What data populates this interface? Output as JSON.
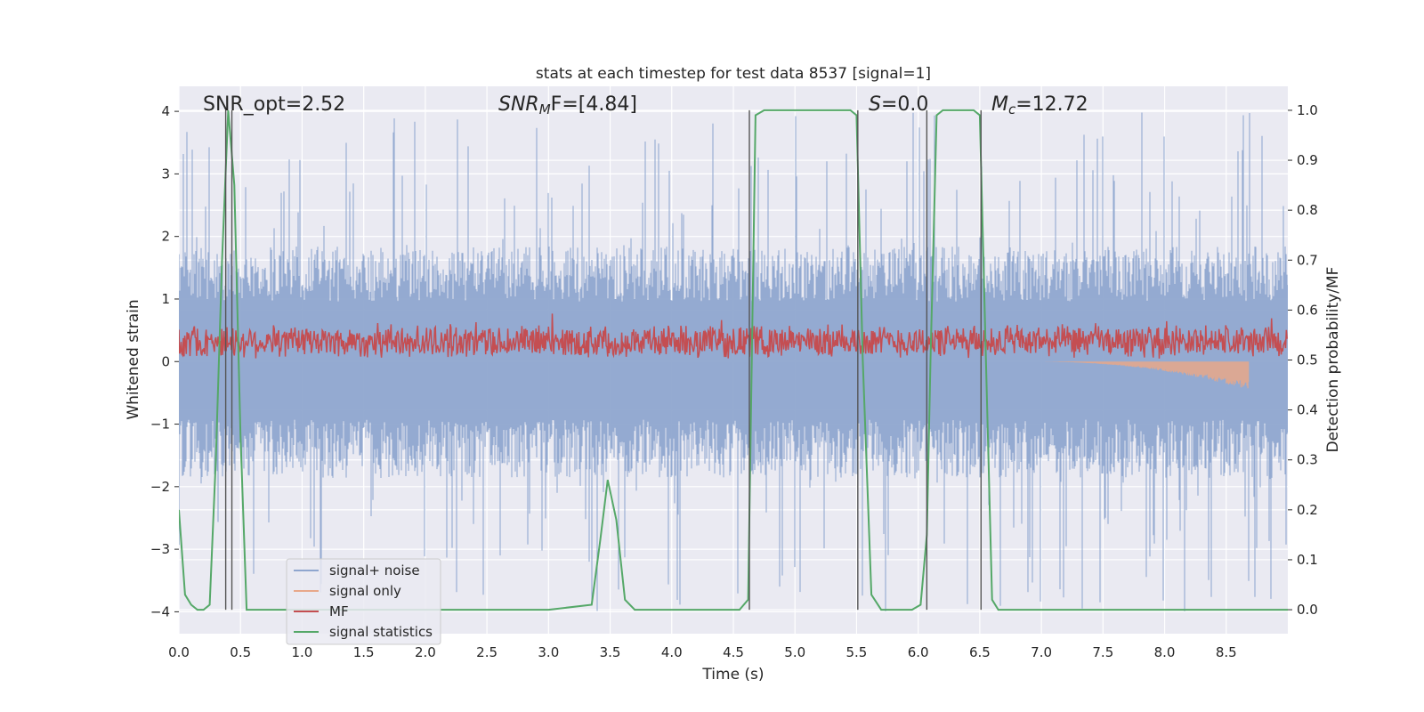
{
  "chart_data": {
    "type": "line",
    "title": "stats at each timestep for test data 8537 [signal=1]",
    "xlabel": "Time (s)",
    "ylabel": "Whitened strain",
    "y2label": "Detection probability/MF",
    "xlim": [
      0.0,
      9.0
    ],
    "ylim": [
      -4.35,
      4.4
    ],
    "y2lim": [
      -0.048,
      1.048
    ],
    "xticks": [
      0.0,
      0.5,
      1.0,
      1.5,
      2.0,
      2.5,
      3.0,
      3.5,
      4.0,
      4.5,
      5.0,
      5.5,
      6.0,
      6.5,
      7.0,
      7.5,
      8.0,
      8.5
    ],
    "xtick_labels": [
      "0.0",
      "0.5",
      "1.0",
      "1.5",
      "2.0",
      "2.5",
      "3.0",
      "3.5",
      "4.0",
      "4.5",
      "5.0",
      "5.5",
      "6.0",
      "6.5",
      "7.0",
      "7.5",
      "8.0",
      "8.5"
    ],
    "yticks": [
      4,
      3,
      2,
      1,
      0,
      -1,
      -2,
      -3,
      -4
    ],
    "ytick_labels": [
      "4",
      "3",
      "2",
      "1",
      "0",
      "−1",
      "−2",
      "−3",
      "−4"
    ],
    "y2ticks": [
      1.0,
      0.9,
      0.8,
      0.7,
      0.6,
      0.5,
      0.4,
      0.3,
      0.2,
      0.1,
      0.0
    ],
    "y2tick_labels": [
      "1.0",
      "0.9",
      "0.8",
      "0.7",
      "0.6",
      "0.5",
      "0.4",
      "0.3",
      "0.2",
      "0.1",
      "0.0"
    ],
    "annotations": {
      "snr_opt": "SNR_opt=2.52",
      "snr_mf_prefix": "SNR",
      "snr_mf_sub": "M",
      "snr_mf_suffix": "F=[4.84]",
      "s_label_var": "S",
      "s_label_value": "=0.0",
      "mc_label_var": "M",
      "mc_label_sub": "c",
      "mc_label_value": "=12.72"
    },
    "vertical_lines_x": [
      0.38,
      0.43,
      4.63,
      5.51,
      6.07,
      6.51
    ],
    "noise_band": {
      "typical_upper": 1.6,
      "typical_lower": -1.55,
      "max_peak": 4.0,
      "min_trough": -4.0
    },
    "mf_band": {
      "center": 0.32,
      "amplitude": 0.28
    },
    "signal_only": {
      "start": 6.9,
      "end": 8.68,
      "min_value": -0.45
    },
    "series": [
      {
        "name": "signal+ noise",
        "color": "#8fa6cf"
      },
      {
        "name": "signal only",
        "color": "#e8a88a"
      },
      {
        "name": "MF",
        "color": "#c44e52"
      },
      {
        "name": "signal statistics",
        "color": "#55a868",
        "axis": "right",
        "x": [
          0.0,
          0.05,
          0.1,
          0.15,
          0.2,
          0.25,
          0.3,
          0.35,
          0.4,
          0.45,
          0.5,
          0.55,
          0.6,
          1.0,
          2.0,
          3.0,
          3.35,
          3.42,
          3.48,
          3.55,
          3.62,
          3.7,
          3.75,
          4.0,
          4.55,
          4.62,
          4.68,
          4.75,
          5.0,
          5.45,
          5.5,
          5.55,
          5.62,
          5.7,
          5.8,
          5.95,
          6.02,
          6.07,
          6.1,
          6.15,
          6.2,
          6.3,
          6.45,
          6.5,
          6.55,
          6.6,
          6.65,
          7.0,
          8.0,
          9.0
        ],
        "values": [
          0.2,
          0.03,
          0.01,
          0.0,
          0.0,
          0.01,
          0.3,
          0.7,
          1.0,
          0.85,
          0.35,
          0.0,
          0.0,
          0.0,
          0.0,
          0.0,
          0.01,
          0.14,
          0.26,
          0.18,
          0.02,
          0.0,
          0.0,
          0.0,
          0.0,
          0.02,
          0.99,
          1.0,
          1.0,
          1.0,
          0.99,
          0.5,
          0.03,
          0.0,
          0.0,
          0.0,
          0.01,
          0.15,
          0.5,
          0.99,
          1.0,
          1.0,
          1.0,
          0.99,
          0.5,
          0.02,
          0.0,
          0.0,
          0.0,
          0.0
        ]
      }
    ],
    "legend": {
      "position": "lower-left",
      "entries": [
        "signal+ noise",
        "signal only",
        "MF",
        "signal statistics"
      ]
    }
  }
}
